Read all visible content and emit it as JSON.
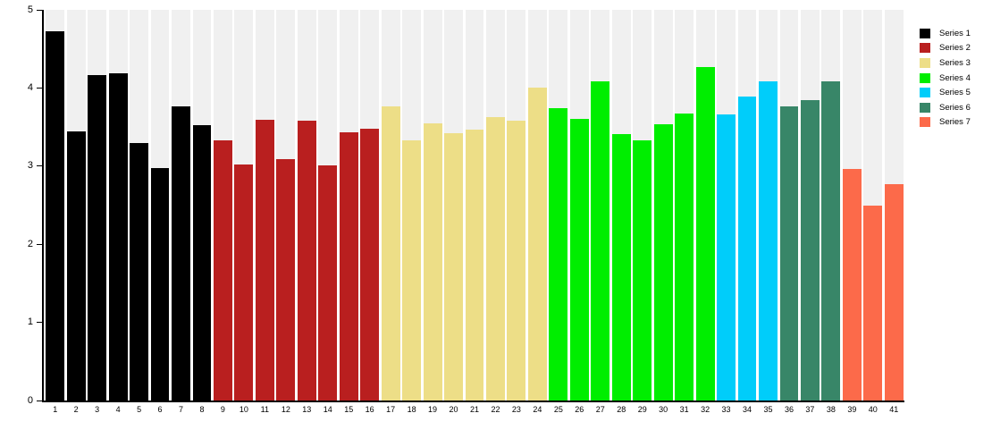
{
  "chart_data": {
    "type": "bar",
    "title": "",
    "xlabel": "",
    "ylabel": "",
    "ylim": [
      0,
      5
    ],
    "yticks": [
      0,
      1,
      2,
      3,
      4,
      5
    ],
    "ytick_labels": [
      "0",
      "1",
      "2",
      "3",
      "4",
      "5"
    ],
    "grid": false,
    "legend_position": "right-top",
    "track_color": "#F0F0F0",
    "axis_color": "#000000",
    "categories": [
      "1",
      "2",
      "3",
      "4",
      "5",
      "6",
      "7",
      "8",
      "9",
      "10",
      "11",
      "12",
      "13",
      "14",
      "15",
      "16",
      "17",
      "18",
      "19",
      "20",
      "21",
      "22",
      "23",
      "24",
      "25",
      "26",
      "27",
      "28",
      "29",
      "30",
      "31",
      "32",
      "33",
      "34",
      "35",
      "36",
      "37",
      "38",
      "39",
      "40",
      "41"
    ],
    "series": [
      {
        "name": "Series 1",
        "color": "#000000",
        "categories": [
          "1",
          "2",
          "3",
          "4",
          "5",
          "6",
          "7",
          "8"
        ],
        "values": [
          4.72,
          3.44,
          4.17,
          4.19,
          3.29,
          2.98,
          3.76,
          3.52
        ]
      },
      {
        "name": "Series 2",
        "color": "#B91F1F",
        "categories": [
          "9",
          "10",
          "11",
          "12",
          "13",
          "14",
          "15",
          "16"
        ],
        "values": [
          3.33,
          3.02,
          3.59,
          3.09,
          3.58,
          3.01,
          3.43,
          3.48
        ]
      },
      {
        "name": "Series 3",
        "color": "#EDDE87",
        "categories": [
          "17",
          "18",
          "19",
          "20",
          "21",
          "22",
          "23",
          "24"
        ],
        "values": [
          3.77,
          3.33,
          3.55,
          3.42,
          3.47,
          3.63,
          3.58,
          4.0
        ]
      },
      {
        "name": "Series 4",
        "color": "#00EE00",
        "categories": [
          "25",
          "26",
          "27",
          "28",
          "29",
          "30",
          "31",
          "32"
        ],
        "values": [
          3.74,
          3.6,
          4.09,
          3.41,
          3.33,
          3.54,
          3.67,
          4.27
        ]
      },
      {
        "name": "Series 5",
        "color": "#00CDFA",
        "categories": [
          "33",
          "34",
          "35"
        ],
        "values": [
          3.66,
          3.89,
          4.08
        ]
      },
      {
        "name": "Series 6",
        "color": "#388668",
        "categories": [
          "36",
          "37",
          "38"
        ],
        "values": [
          3.77,
          3.85,
          4.08
        ]
      },
      {
        "name": "Series 7",
        "color": "#FC6A4A",
        "categories": [
          "39",
          "40",
          "41"
        ],
        "values": [
          2.96,
          2.5,
          2.77
        ]
      }
    ]
  }
}
